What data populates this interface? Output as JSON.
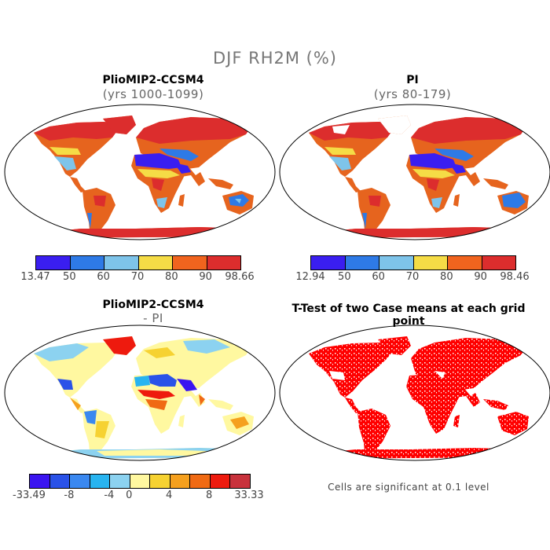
{
  "figure_title": "DJF RH2M (%)",
  "panels": {
    "tl": {
      "title": "PlioMIP2-CCSM4",
      "subtitle": "(yrs 1000-1099)"
    },
    "tr": {
      "title": "PI",
      "subtitle": "(yrs 80-179)"
    },
    "bl": {
      "title": "PlioMIP2-CCSM4",
      "subtitle": "- PI"
    },
    "br": {
      "title": "T-Test of two Case means at each grid point"
    }
  },
  "colorbars": {
    "tl": {
      "colors": [
        "#3a1ef0",
        "#2e7ae6",
        "#7ec4ea",
        "#f5dc46",
        "#f0641e",
        "#dc2d2d"
      ],
      "labels": [
        "13.47",
        "50",
        "60",
        "70",
        "80",
        "90",
        "98.66"
      ]
    },
    "tr": {
      "colors": [
        "#3a1ef0",
        "#2e7ae6",
        "#7ec4ea",
        "#f5dc46",
        "#f0641e",
        "#dc2d2d"
      ],
      "labels": [
        "12.94",
        "50",
        "60",
        "70",
        "80",
        "90",
        "98.46"
      ]
    },
    "bl": {
      "colors": [
        "#3a14f0",
        "#2a52e8",
        "#3a88f0",
        "#28b4f0",
        "#8cd2f0",
        "#fff8a0",
        "#f6d232",
        "#f5a01e",
        "#f06a14",
        "#ee1a0e",
        "#c8323c"
      ],
      "labels": [
        "-33.49",
        "-8",
        "-4",
        "0",
        "4",
        "8",
        "33.33"
      ]
    }
  },
  "significance_note": "Cells are significant at 0.1 level"
}
